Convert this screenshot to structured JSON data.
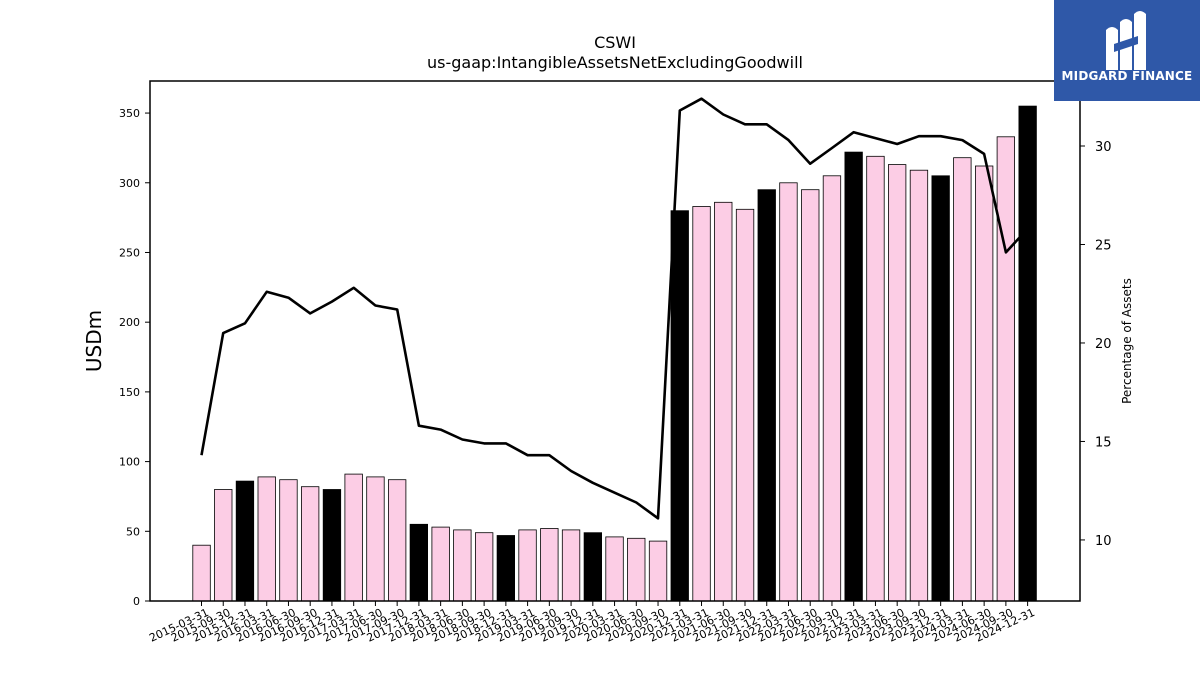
{
  "brand": {
    "name": "MIDGARD FINANCE",
    "color": "#2f58a8",
    "icon": "midgard-logo-icon"
  },
  "chart_data": {
    "type": "bar",
    "title": "CSWI",
    "subtitle": "us-gaap:IntangibleAssetsNetExcludingGoodwill",
    "ylabel": "USDm",
    "ylabel_right": "Percentage of Assets",
    "ylim": [
      0,
      373
    ],
    "ylim_right": [
      6.9,
      33.3
    ],
    "yticks": [
      0,
      50,
      100,
      150,
      200,
      250,
      300,
      350
    ],
    "yticks_right": [
      10,
      15,
      20,
      25,
      30
    ],
    "colors": {
      "bar_default": "#fccde5",
      "bar_highlight": "#000000",
      "line": "#000000"
    },
    "categories": [
      "2015-03-31",
      "2015-09-30",
      "2015-12-31",
      "2016-03-31",
      "2016-06-30",
      "2016-09-30",
      "2016-12-31",
      "2017-03-31",
      "2017-06-30",
      "2017-09-30",
      "2017-12-31",
      "2018-03-31",
      "2018-06-30",
      "2018-09-30",
      "2018-12-31",
      "2019-03-31",
      "2019-06-30",
      "2019-09-30",
      "2019-12-31",
      "2020-03-31",
      "2020-06-30",
      "2020-09-30",
      "2020-12-31",
      "2021-03-31",
      "2021-06-30",
      "2021-09-30",
      "2021-12-31",
      "2022-03-31",
      "2022-06-30",
      "2022-09-30",
      "2022-12-31",
      "2023-03-31",
      "2023-06-30",
      "2023-09-30",
      "2023-12-31",
      "2024-03-31",
      "2024-06-30",
      "2024-09-30",
      "2024-12-31"
    ],
    "series": [
      {
        "type": "bar",
        "values": [
          40,
          80,
          86,
          89,
          87,
          82,
          80,
          91,
          89,
          87,
          55,
          53,
          51,
          49,
          47,
          51,
          52,
          51,
          49,
          46,
          45,
          43,
          280,
          283,
          286,
          281,
          295,
          300,
          295,
          305,
          322,
          319,
          313,
          309,
          305,
          318,
          312,
          333,
          355
        ],
        "highlight": [
          false,
          false,
          true,
          false,
          false,
          false,
          true,
          false,
          false,
          false,
          true,
          false,
          false,
          false,
          true,
          false,
          false,
          false,
          true,
          false,
          false,
          false,
          true,
          false,
          false,
          false,
          true,
          false,
          false,
          false,
          true,
          false,
          false,
          false,
          true,
          false,
          false,
          false,
          true
        ]
      },
      {
        "type": "line",
        "axis": "right",
        "values": [
          14.3,
          20.5,
          21.0,
          22.6,
          22.3,
          21.5,
          22.1,
          22.8,
          21.9,
          21.7,
          15.8,
          15.6,
          15.1,
          14.9,
          14.9,
          14.3,
          14.3,
          13.5,
          12.9,
          12.4,
          11.9,
          11.1,
          31.8,
          32.4,
          31.6,
          31.1,
          31.1,
          30.3,
          29.1,
          29.9,
          30.7,
          30.4,
          30.1,
          30.5,
          30.5,
          30.3,
          29.6,
          24.6,
          25.8
        ]
      }
    ]
  }
}
